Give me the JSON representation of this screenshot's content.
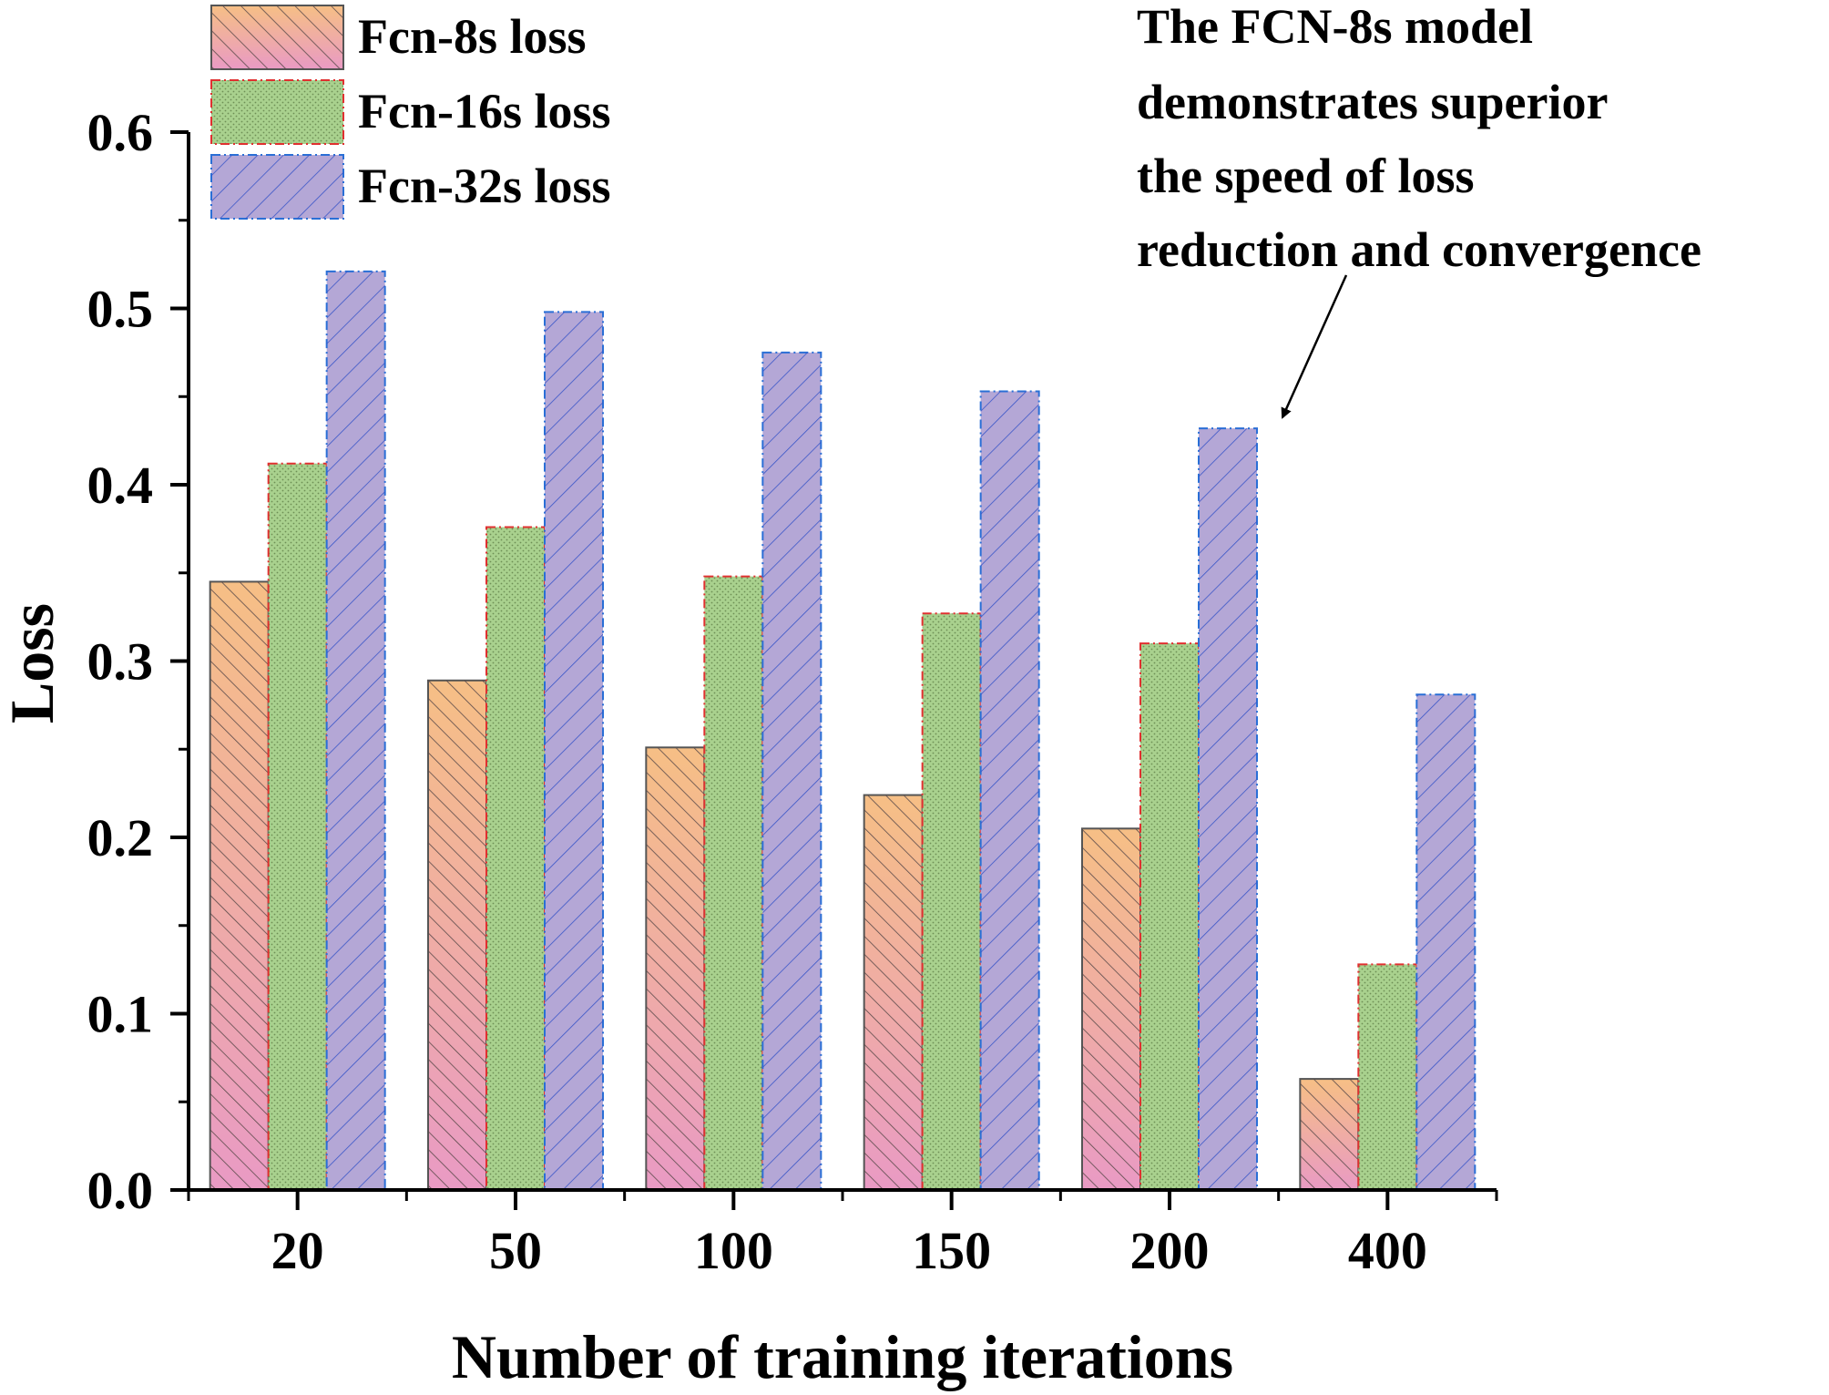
{
  "chart_data": {
    "type": "bar",
    "title": "",
    "xlabel": "Number of training iterations",
    "ylabel": "Loss",
    "categories": [
      "20",
      "50",
      "100",
      "150",
      "200",
      "400"
    ],
    "ylim": [
      0.0,
      0.6
    ],
    "yticks": [
      "0.0",
      "0.1",
      "0.2",
      "0.3",
      "0.4",
      "0.5",
      "0.6"
    ],
    "series": [
      {
        "name": "Fcn-8s loss",
        "values": [
          0.345,
          0.289,
          0.251,
          0.224,
          0.205,
          0.063
        ]
      },
      {
        "name": "Fcn-16s loss",
        "values": [
          0.412,
          0.376,
          0.348,
          0.327,
          0.31,
          0.128
        ]
      },
      {
        "name": "Fcn-32s loss",
        "values": [
          0.521,
          0.498,
          0.475,
          0.453,
          0.432,
          0.281
        ]
      }
    ],
    "legend_position": "top-left",
    "annotation": {
      "lines": [
        "The FCN-8s model",
        "demonstrates superior",
        "the speed of loss",
        "reduction and convergence"
      ],
      "arrow_to": {
        "category": "200",
        "series": "Fcn-32s loss"
      }
    }
  },
  "colors": {
    "series_fill": [
      "#f4b183",
      "#a9d18e",
      "#b4a7d6"
    ],
    "series_fill_bottom": [
      "#e898c0",
      "#a9d18e",
      "#b4a7d6"
    ],
    "series_edge": [
      "#555555",
      "#e03030",
      "#2a6fd6"
    ],
    "series_hatch": [
      "#555555",
      "#6f8f4a",
      "#3a56c8"
    ]
  }
}
